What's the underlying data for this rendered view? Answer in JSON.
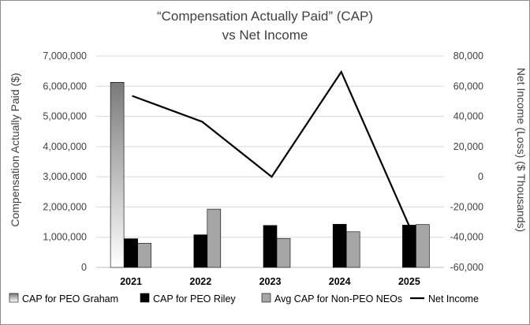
{
  "chart_data": {
    "type": "bar",
    "title_line1": "“Compensation Actually Paid” (CAP)",
    "title_line2": "vs Net Income",
    "categories": [
      "2021",
      "2022",
      "2023",
      "2024",
      "2025"
    ],
    "ylabel": "Compensation Actually Paid ($)",
    "y2label": "Net Income (Loss) ($ Thousands)",
    "ylim": [
      0,
      7000000
    ],
    "y2lim": [
      -60000,
      80000
    ],
    "yticks": [
      "7,000,000",
      "6,000,000",
      "5,000,000",
      "4,000,000",
      "3,000,000",
      "2,000,000",
      "1,000,000",
      "0"
    ],
    "y2ticks": [
      "80,000",
      "60,000",
      "40,000",
      "20,000",
      "0",
      "-20,000",
      "-40,000",
      "-60,000"
    ],
    "yticks_values": [
      7000000,
      6000000,
      5000000,
      4000000,
      3000000,
      2000000,
      1000000,
      0
    ],
    "y2ticks_values": [
      80000,
      60000,
      40000,
      20000,
      0,
      -20000,
      -40000,
      -60000
    ],
    "grid": true,
    "legend_position": "bottom",
    "series": [
      {
        "name": "CAP for PEO Graham",
        "kind": "bar",
        "axis": "left",
        "color": "#808080",
        "gradient": true,
        "values": [
          6130000,
          null,
          null,
          null,
          null
        ]
      },
      {
        "name": "CAP for PEO Riley",
        "kind": "bar",
        "axis": "left",
        "color": "#000000",
        "values": [
          950000,
          1080000,
          1390000,
          1430000,
          1400000
        ]
      },
      {
        "name": "Avg CAP for Non-PEO NEOs",
        "kind": "bar",
        "axis": "left",
        "color": "#a6a6a6",
        "values": [
          800000,
          1930000,
          960000,
          1180000,
          1420000
        ]
      },
      {
        "name": "Net Income",
        "kind": "line",
        "axis": "right",
        "color": "#000000",
        "values": [
          53500,
          36500,
          0,
          69500,
          -35000
        ]
      }
    ]
  }
}
